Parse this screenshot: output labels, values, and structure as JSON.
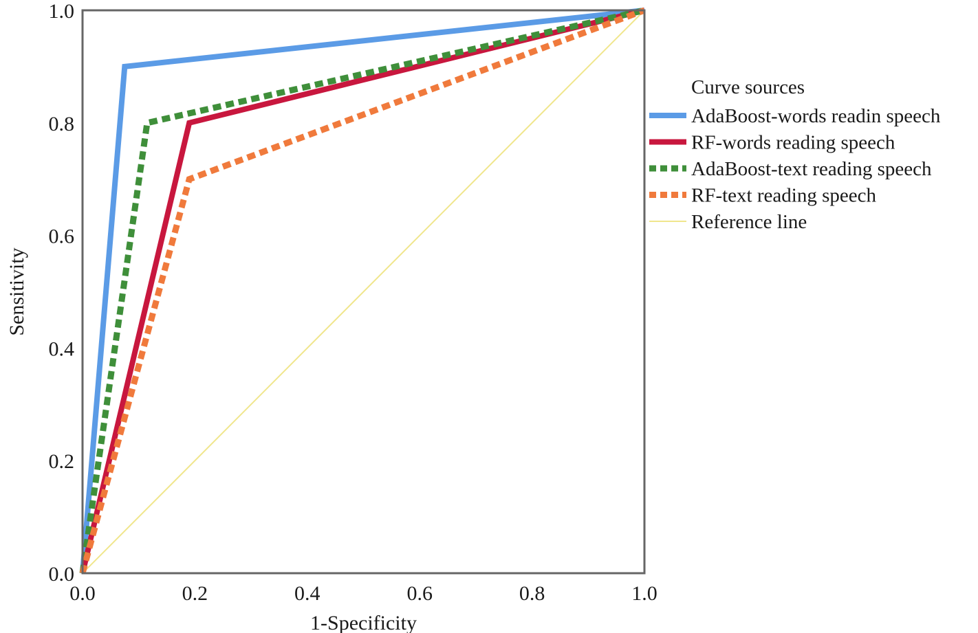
{
  "chart_data": {
    "type": "line",
    "xlabel": "1-Specificity",
    "ylabel": "Sensitivity",
    "xlim": [
      0.0,
      1.0
    ],
    "ylim": [
      0.0,
      1.0
    ],
    "x_ticks": [
      "0.0",
      "0.2",
      "0.4",
      "0.6",
      "0.8",
      "1.0"
    ],
    "y_ticks": [
      "0.0",
      "0.2",
      "0.4",
      "0.6",
      "0.8",
      "1.0"
    ],
    "grid": false,
    "legend_title": "Curve sources",
    "legend_position": "right",
    "series": [
      {
        "name": "AdaBoost-words readin speech",
        "color": "#5b9be6",
        "style": "solid",
        "points": [
          [
            0.0,
            0.0
          ],
          [
            0.075,
            0.9
          ],
          [
            1.0,
            1.0
          ]
        ]
      },
      {
        "name": "RF-words reading speech",
        "color": "#c8173e",
        "style": "solid",
        "points": [
          [
            0.0,
            0.0
          ],
          [
            0.19,
            0.8
          ],
          [
            1.0,
            1.0
          ]
        ]
      },
      {
        "name": "AdaBoost-text reading speech",
        "color": "#3f8f3a",
        "style": "dashed",
        "points": [
          [
            0.0,
            0.0
          ],
          [
            0.115,
            0.8
          ],
          [
            1.0,
            1.0
          ]
        ]
      },
      {
        "name": "RF-text reading speech",
        "color": "#f07a3c",
        "style": "dashed",
        "points": [
          [
            0.0,
            0.0
          ],
          [
            0.19,
            0.7
          ],
          [
            1.0,
            1.0
          ]
        ]
      },
      {
        "name": "Reference line",
        "color": "#f0e68c",
        "style": "thin",
        "points": [
          [
            0.0,
            0.0
          ],
          [
            1.0,
            1.0
          ]
        ]
      }
    ]
  }
}
